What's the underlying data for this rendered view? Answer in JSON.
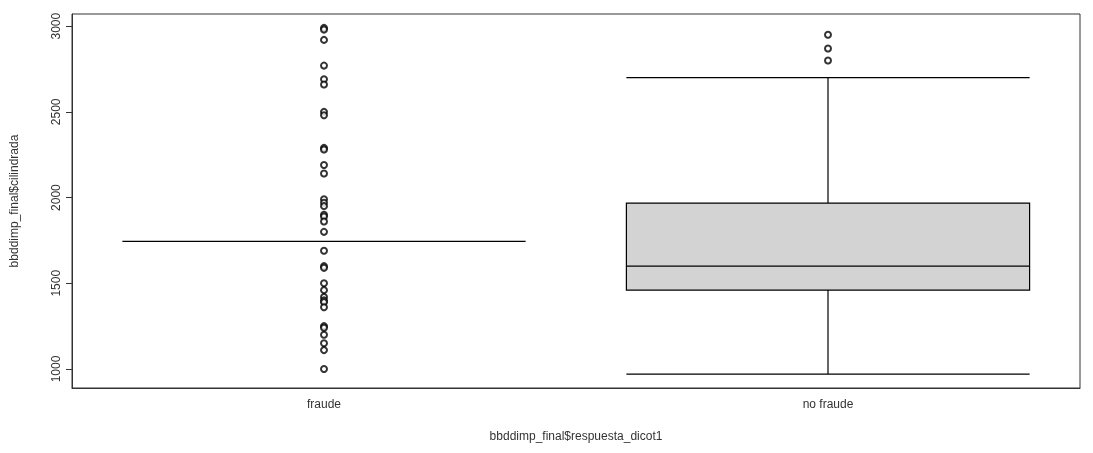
{
  "chart_data": {
    "type": "box",
    "xlabel": "bbddimp_final$respuesta_dicot1",
    "ylabel": "bbddimp_final$cilindrada",
    "categories": [
      "fraude",
      "no fraude"
    ],
    "colors": [
      "#000000",
      "#d3d3d3"
    ],
    "ylim": [
      889,
      3071
    ],
    "yticks": [
      1000,
      1500,
      2000,
      2500,
      3000
    ],
    "grid": false,
    "boxes": [
      {
        "low": 1745,
        "q1": 1745,
        "median": 1745,
        "q3": 1745,
        "high": 1745,
        "outliers": [
          2990,
          2980,
          2920,
          2770,
          2690,
          2660,
          2500,
          2480,
          2290,
          2280,
          2190,
          2140,
          1990,
          1970,
          1950,
          1900,
          1890,
          1860,
          1800,
          1690,
          1600,
          1590,
          1500,
          1460,
          1420,
          1400,
          1390,
          1360,
          1250,
          1240,
          1200,
          1150,
          1110,
          1000
        ]
      },
      {
        "low": 970,
        "q1": 1460,
        "median": 1600,
        "q3": 1968,
        "high": 2700,
        "outliers": [
          2800,
          2870,
          2950
        ]
      }
    ]
  }
}
